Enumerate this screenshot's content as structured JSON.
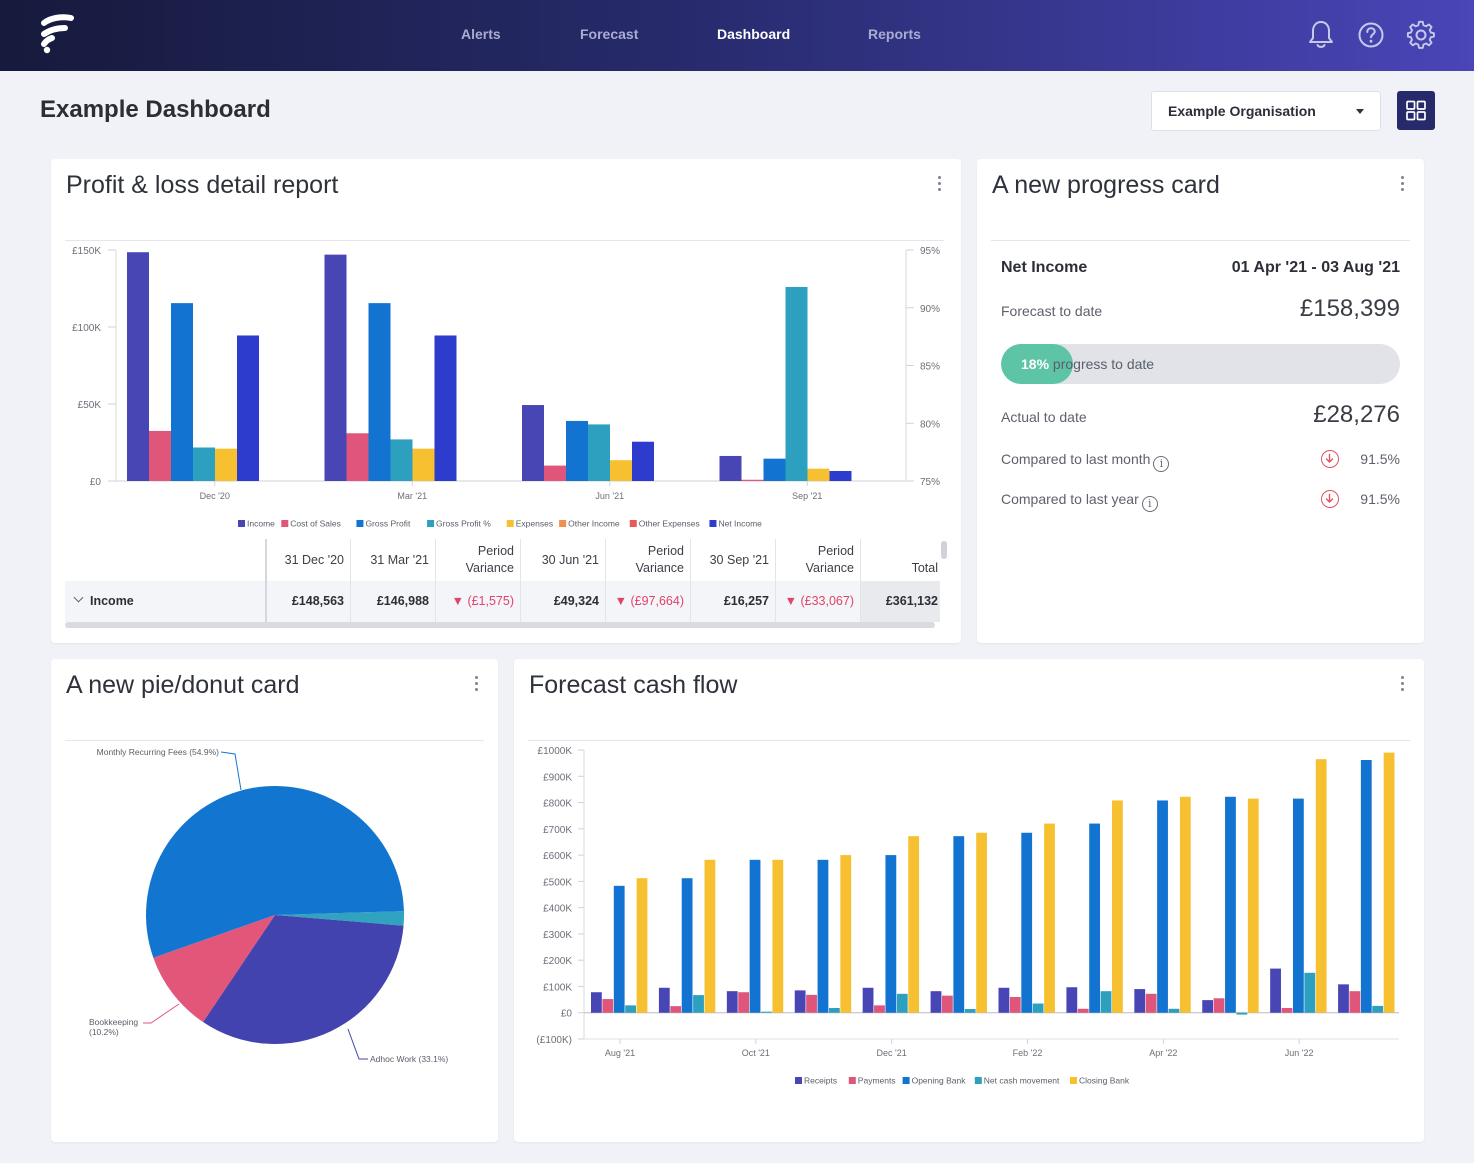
{
  "nav": {
    "items": [
      "Alerts",
      "Forecast",
      "Dashboard",
      "Reports"
    ],
    "active": "Dashboard"
  },
  "icons": [
    "logo-icon",
    "bell-icon",
    "help-icon",
    "gear-icon",
    "grid-icon",
    "chevron-down-icon",
    "kebab-icon",
    "info-icon",
    "arrow-down-icon"
  ],
  "page": {
    "title": "Example Dashboard",
    "org": "Example Organisation"
  },
  "pl": {
    "title": "Profit & loss detail report",
    "columns": [
      "31 Dec '20",
      "31 Mar '21",
      "Period Variance",
      "30 Jun '21",
      "Period Variance",
      "30 Sep '21",
      "Period Variance",
      "Total"
    ],
    "row": {
      "label": "Income",
      "values": [
        "£148,563",
        "£146,988",
        "▼ (£1,575)",
        "£49,324",
        "▼ (£97,664)",
        "£16,257",
        "▼ (£33,067)",
        "£361,132"
      ]
    }
  },
  "progress": {
    "title": "A new progress card",
    "header_label": "Net Income",
    "header_range": "01 Apr '21 - 03 Aug '21",
    "forecast_label": "Forecast to date",
    "forecast_value": "£158,399",
    "progress_pct": 18,
    "progress_badge": "18%",
    "progress_text": "progress to date",
    "actual_label": "Actual to date",
    "actual_value": "£28,276",
    "cmp_month_label": "Compared to last month",
    "cmp_month_value": "91.5%",
    "cmp_year_label": "Compared to last year",
    "cmp_year_value": "91.5%"
  },
  "pie": {
    "title": "A new pie/donut card"
  },
  "cash": {
    "title": "Forecast cash flow"
  },
  "chart_data": [
    {
      "type": "bar",
      "id": "pl-chart",
      "x": [
        "Dec '20",
        "Mar '21",
        "Jun '21",
        "Sep '21"
      ],
      "yticks": [
        "£0",
        "£50K",
        "£100K",
        "£150K"
      ],
      "ylim": [
        0,
        150000
      ],
      "y2ticks": [
        "75%",
        "80%",
        "85%",
        "90%",
        "95%"
      ],
      "y2lim": [
        75,
        95
      ],
      "legend_position": "bottom",
      "series": [
        {
          "name": "Income",
          "color": "#4845b5",
          "axis": "left",
          "values": [
            148563,
            146988,
            49324,
            16257
          ]
        },
        {
          "name": "Cost of Sales",
          "color": "#e0557a",
          "axis": "left",
          "values": [
            32500,
            31000,
            10000,
            800
          ]
        },
        {
          "name": "Gross Profit",
          "color": "#1273d1",
          "axis": "left",
          "values": [
            115500,
            115500,
            39000,
            14500
          ]
        },
        {
          "name": "Gross Profit %",
          "color": "#2d9fbf",
          "axis": "right",
          "values": [
            77.9,
            78.6,
            79.9,
            91.8
          ]
        },
        {
          "name": "Expenses",
          "color": "#f7c030",
          "axis": "left",
          "values": [
            21000,
            21000,
            13500,
            8000
          ]
        },
        {
          "name": "Other Income",
          "color": "#f58d4e",
          "axis": "left",
          "values": [
            0,
            0,
            0,
            0
          ]
        },
        {
          "name": "Other Expenses",
          "color": "#e85a5a",
          "axis": "left",
          "values": [
            0,
            0,
            0,
            0
          ]
        },
        {
          "name": "Net Income",
          "color": "#2d3ccc",
          "axis": "left",
          "values": [
            94500,
            94500,
            25500,
            6500
          ]
        }
      ]
    },
    {
      "type": "pie",
      "id": "pie-chart",
      "slices": [
        {
          "label": "Monthly Recurring Fees (54.9%)",
          "value": 54.9,
          "color": "#1276d0"
        },
        {
          "label": "Adhoc Work (33.1%)",
          "value": 33.1,
          "color": "#4343b0"
        },
        {
          "label": "Bookkeeping",
          "label2": "(10.2%)",
          "value": 10.2,
          "color": "#e2567a"
        },
        {
          "label": "",
          "value": 1.8,
          "color": "#30a3c0"
        }
      ]
    },
    {
      "type": "bar",
      "id": "cash-chart",
      "yticks": [
        "(£100K)",
        "£0",
        "£100K",
        "£200K",
        "£300K",
        "£400K",
        "£500K",
        "£600K",
        "£700K",
        "£800K",
        "£900K",
        "£1000K"
      ],
      "ylim": [
        -100000,
        1000000
      ],
      "xlabels": [
        {
          "i": 0,
          "t": "Aug '21"
        },
        {
          "i": 2,
          "t": "Oct '21"
        },
        {
          "i": 4,
          "t": "Dec '21"
        },
        {
          "i": 6,
          "t": "Feb '22"
        },
        {
          "i": 8,
          "t": "Apr '22"
        },
        {
          "i": 10,
          "t": "Jun '22"
        }
      ],
      "legend_position": "bottom",
      "series": [
        {
          "name": "Receipts",
          "color": "#4845b5",
          "values": [
            78000,
            95000,
            82000,
            85000,
            95000,
            82000,
            95000,
            97000,
            90000,
            48000,
            168000,
            108000
          ]
        },
        {
          "name": "Payments",
          "color": "#e0557a",
          "values": [
            52000,
            25000,
            78000,
            68000,
            28000,
            65000,
            60000,
            15000,
            72000,
            55000,
            18000,
            82000
          ]
        },
        {
          "name": "Opening Bank",
          "color": "#1273d1",
          "values": [
            483000,
            512000,
            582000,
            582000,
            600000,
            672000,
            685000,
            720000,
            808000,
            822000,
            815000,
            962000
          ]
        },
        {
          "name": "Net cash movement",
          "color": "#2d9fbf",
          "values": [
            28000,
            67000,
            4000,
            18000,
            72000,
            14000,
            35000,
            82000,
            15000,
            -7000,
            152000,
            26000
          ]
        },
        {
          "name": "Closing Bank",
          "color": "#f7c030",
          "values": [
            512000,
            582000,
            582000,
            600000,
            672000,
            685000,
            720000,
            808000,
            822000,
            815000,
            965000,
            990000
          ]
        }
      ]
    }
  ]
}
